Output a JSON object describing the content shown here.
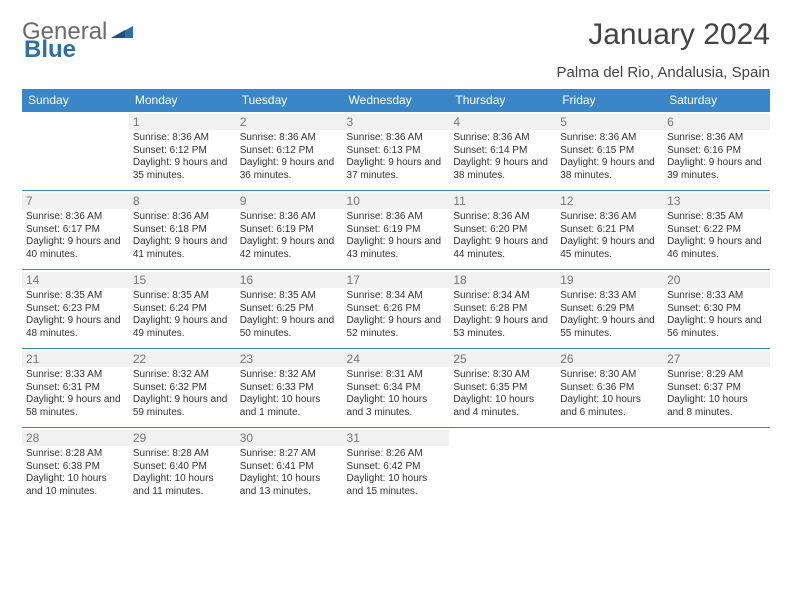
{
  "logo": {
    "word1": "General",
    "word2": "Blue"
  },
  "title": "January 2024",
  "location": "Palma del Rio, Andalusia, Spain",
  "colors": {
    "header_bg": "#3b86c6",
    "header_text": "#ffffff",
    "row_border": "#3b86c6",
    "daynum_bg": "#f1f1f1",
    "daynum_text": "#777777",
    "body_text": "#333333",
    "logo_general": "#6b6b6b",
    "logo_blue": "#2f6fa8"
  },
  "typography": {
    "title_fontsize": 30,
    "location_fontsize": 15,
    "header_fontsize": 12,
    "daynum_fontsize": 12,
    "cell_fontsize": 10
  },
  "weekdays": [
    "Sunday",
    "Monday",
    "Tuesday",
    "Wednesday",
    "Thursday",
    "Friday",
    "Saturday"
  ],
  "weeks": [
    [
      null,
      {
        "n": "1",
        "sr": "Sunrise: 8:36 AM",
        "ss": "Sunset: 6:12 PM",
        "dl": "Daylight: 9 hours and 35 minutes."
      },
      {
        "n": "2",
        "sr": "Sunrise: 8:36 AM",
        "ss": "Sunset: 6:12 PM",
        "dl": "Daylight: 9 hours and 36 minutes."
      },
      {
        "n": "3",
        "sr": "Sunrise: 8:36 AM",
        "ss": "Sunset: 6:13 PM",
        "dl": "Daylight: 9 hours and 37 minutes."
      },
      {
        "n": "4",
        "sr": "Sunrise: 8:36 AM",
        "ss": "Sunset: 6:14 PM",
        "dl": "Daylight: 9 hours and 38 minutes."
      },
      {
        "n": "5",
        "sr": "Sunrise: 8:36 AM",
        "ss": "Sunset: 6:15 PM",
        "dl": "Daylight: 9 hours and 38 minutes."
      },
      {
        "n": "6",
        "sr": "Sunrise: 8:36 AM",
        "ss": "Sunset: 6:16 PM",
        "dl": "Daylight: 9 hours and 39 minutes."
      }
    ],
    [
      {
        "n": "7",
        "sr": "Sunrise: 8:36 AM",
        "ss": "Sunset: 6:17 PM",
        "dl": "Daylight: 9 hours and 40 minutes."
      },
      {
        "n": "8",
        "sr": "Sunrise: 8:36 AM",
        "ss": "Sunset: 6:18 PM",
        "dl": "Daylight: 9 hours and 41 minutes."
      },
      {
        "n": "9",
        "sr": "Sunrise: 8:36 AM",
        "ss": "Sunset: 6:19 PM",
        "dl": "Daylight: 9 hours and 42 minutes."
      },
      {
        "n": "10",
        "sr": "Sunrise: 8:36 AM",
        "ss": "Sunset: 6:19 PM",
        "dl": "Daylight: 9 hours and 43 minutes."
      },
      {
        "n": "11",
        "sr": "Sunrise: 8:36 AM",
        "ss": "Sunset: 6:20 PM",
        "dl": "Daylight: 9 hours and 44 minutes."
      },
      {
        "n": "12",
        "sr": "Sunrise: 8:36 AM",
        "ss": "Sunset: 6:21 PM",
        "dl": "Daylight: 9 hours and 45 minutes."
      },
      {
        "n": "13",
        "sr": "Sunrise: 8:35 AM",
        "ss": "Sunset: 6:22 PM",
        "dl": "Daylight: 9 hours and 46 minutes."
      }
    ],
    [
      {
        "n": "14",
        "sr": "Sunrise: 8:35 AM",
        "ss": "Sunset: 6:23 PM",
        "dl": "Daylight: 9 hours and 48 minutes."
      },
      {
        "n": "15",
        "sr": "Sunrise: 8:35 AM",
        "ss": "Sunset: 6:24 PM",
        "dl": "Daylight: 9 hours and 49 minutes."
      },
      {
        "n": "16",
        "sr": "Sunrise: 8:35 AM",
        "ss": "Sunset: 6:25 PM",
        "dl": "Daylight: 9 hours and 50 minutes."
      },
      {
        "n": "17",
        "sr": "Sunrise: 8:34 AM",
        "ss": "Sunset: 6:26 PM",
        "dl": "Daylight: 9 hours and 52 minutes."
      },
      {
        "n": "18",
        "sr": "Sunrise: 8:34 AM",
        "ss": "Sunset: 6:28 PM",
        "dl": "Daylight: 9 hours and 53 minutes."
      },
      {
        "n": "19",
        "sr": "Sunrise: 8:33 AM",
        "ss": "Sunset: 6:29 PM",
        "dl": "Daylight: 9 hours and 55 minutes."
      },
      {
        "n": "20",
        "sr": "Sunrise: 8:33 AM",
        "ss": "Sunset: 6:30 PM",
        "dl": "Daylight: 9 hours and 56 minutes."
      }
    ],
    [
      {
        "n": "21",
        "sr": "Sunrise: 8:33 AM",
        "ss": "Sunset: 6:31 PM",
        "dl": "Daylight: 9 hours and 58 minutes."
      },
      {
        "n": "22",
        "sr": "Sunrise: 8:32 AM",
        "ss": "Sunset: 6:32 PM",
        "dl": "Daylight: 9 hours and 59 minutes."
      },
      {
        "n": "23",
        "sr": "Sunrise: 8:32 AM",
        "ss": "Sunset: 6:33 PM",
        "dl": "Daylight: 10 hours and 1 minute."
      },
      {
        "n": "24",
        "sr": "Sunrise: 8:31 AM",
        "ss": "Sunset: 6:34 PM",
        "dl": "Daylight: 10 hours and 3 minutes."
      },
      {
        "n": "25",
        "sr": "Sunrise: 8:30 AM",
        "ss": "Sunset: 6:35 PM",
        "dl": "Daylight: 10 hours and 4 minutes."
      },
      {
        "n": "26",
        "sr": "Sunrise: 8:30 AM",
        "ss": "Sunset: 6:36 PM",
        "dl": "Daylight: 10 hours and 6 minutes."
      },
      {
        "n": "27",
        "sr": "Sunrise: 8:29 AM",
        "ss": "Sunset: 6:37 PM",
        "dl": "Daylight: 10 hours and 8 minutes."
      }
    ],
    [
      {
        "n": "28",
        "sr": "Sunrise: 8:28 AM",
        "ss": "Sunset: 6:38 PM",
        "dl": "Daylight: 10 hours and 10 minutes."
      },
      {
        "n": "29",
        "sr": "Sunrise: 8:28 AM",
        "ss": "Sunset: 6:40 PM",
        "dl": "Daylight: 10 hours and 11 minutes."
      },
      {
        "n": "30",
        "sr": "Sunrise: 8:27 AM",
        "ss": "Sunset: 6:41 PM",
        "dl": "Daylight: 10 hours and 13 minutes."
      },
      {
        "n": "31",
        "sr": "Sunrise: 8:26 AM",
        "ss": "Sunset: 6:42 PM",
        "dl": "Daylight: 10 hours and 15 minutes."
      },
      null,
      null,
      null
    ]
  ]
}
